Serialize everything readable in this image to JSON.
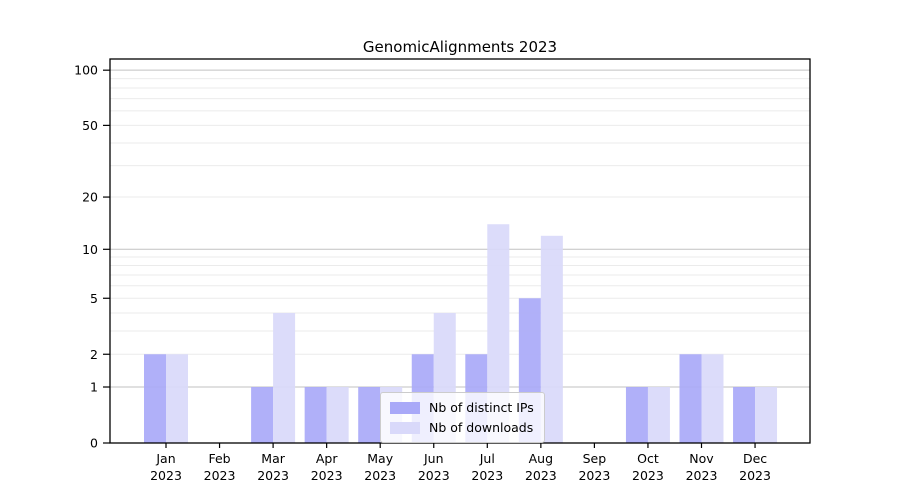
{
  "title": "GenomicAlignments 2023",
  "legend": {
    "items": [
      {
        "label": "Nb of distinct IPs",
        "series": "ips"
      },
      {
        "label": "Nb of downloads",
        "series": "downloads"
      }
    ]
  },
  "colors": {
    "ips_bar": "#a9a9f8",
    "downloads_bar": "#d9d9fa",
    "major_grid": "#c2c2c2",
    "minor_grid": "#ebebeb",
    "axis": "#000000",
    "text": "#000000"
  },
  "chart_data": {
    "type": "bar",
    "categories": [
      "Jan 2023",
      "Feb 2023",
      "Mar 2023",
      "Apr 2023",
      "May 2023",
      "Jun 2023",
      "Jul 2023",
      "Aug 2023",
      "Sep 2023",
      "Oct 2023",
      "Nov 2023",
      "Dec 2023"
    ],
    "series": [
      {
        "name": "Nb of distinct IPs",
        "key": "ips",
        "values": [
          2,
          0,
          1,
          1,
          1,
          2,
          2,
          5,
          0,
          1,
          2,
          1
        ]
      },
      {
        "name": "Nb of downloads",
        "key": "downloads",
        "values": [
          2,
          0,
          4,
          1,
          1,
          4,
          14,
          12,
          0,
          1,
          2,
          1
        ]
      }
    ],
    "title": "GenomicAlignments 2023",
    "xlabel": "",
    "ylabel": "",
    "y_scale": "log1p",
    "ylim": [
      0,
      115
    ],
    "y_ticks": [
      {
        "value": 100,
        "label": "100"
      },
      {
        "value": 50,
        "label": "50"
      },
      {
        "value": 20,
        "label": "20"
      },
      {
        "value": 10,
        "label": "10"
      },
      {
        "value": 5,
        "label": "5"
      },
      {
        "value": 2,
        "label": "2"
      },
      {
        "value": 1,
        "label": "1"
      },
      {
        "value": 0,
        "label": "0"
      }
    ],
    "major_grid_values": [
      1,
      10,
      100
    ],
    "minor_grid_values": [
      2,
      3,
      4,
      5,
      6,
      7,
      8,
      9,
      20,
      30,
      40,
      50,
      60,
      70,
      80,
      90
    ],
    "grid": true,
    "legend_position": "lower center"
  }
}
